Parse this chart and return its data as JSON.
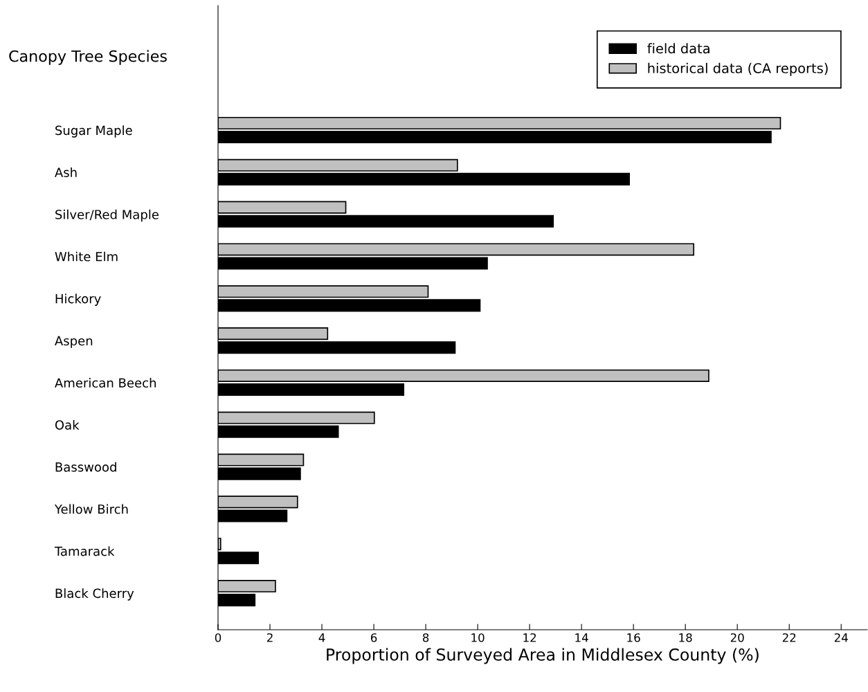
{
  "chart_data": {
    "type": "bar",
    "orientation": "horizontal",
    "title": "Canopy Tree Species",
    "xlabel": "Proportion of Surveyed Area in Middlesex County (%)",
    "categories": [
      "Sugar Maple",
      "Ash",
      "Silver/Red Maple",
      "White Elm",
      "Hickory",
      "Aspen",
      "American Beech",
      "Oak",
      "Basswood",
      "Yellow Birch",
      "Tamarack",
      "Black Cherry"
    ],
    "series": [
      {
        "name": "field data",
        "color": "#000000",
        "values": [
          21.3,
          15.84,
          12.91,
          10.37,
          10.09,
          9.13,
          7.15,
          4.63,
          3.17,
          2.65,
          1.55,
          1.42
        ]
      },
      {
        "name": "historical data (CA reports)",
        "color": "#c0c0c0",
        "values": [
          21.66,
          9.22,
          4.92,
          18.32,
          8.09,
          4.22,
          18.9,
          6.02,
          3.29,
          3.06,
          0.1,
          2.21
        ]
      }
    ],
    "xlim": [
      0,
      25
    ],
    "xticks": [
      0,
      2,
      4,
      6,
      8,
      10,
      12,
      14,
      16,
      18,
      20,
      22,
      24
    ],
    "grid": false,
    "legend": "top right"
  }
}
